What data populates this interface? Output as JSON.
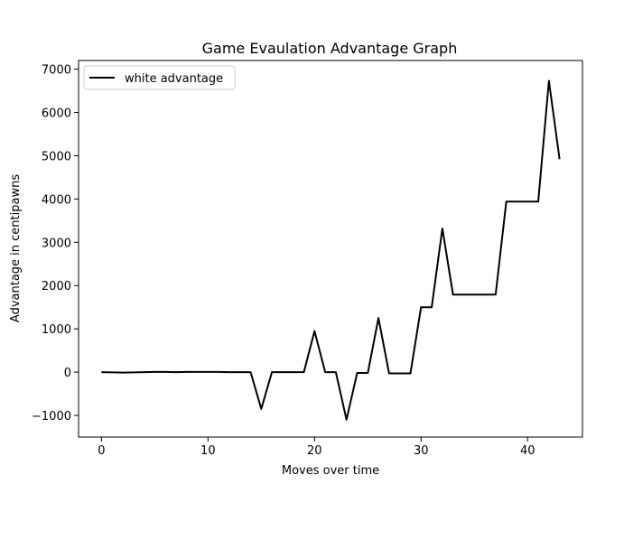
{
  "chart_data": {
    "type": "line",
    "title": "Game Evaulation Advantage Graph",
    "xlabel": "Moves over time",
    "ylabel": "Advantage in centipawns",
    "xlim": [
      -2.15,
      45.15
    ],
    "ylim": [
      -1500,
      7200
    ],
    "x_ticks": [
      0,
      10,
      20,
      30,
      40
    ],
    "y_ticks": [
      -1000,
      0,
      1000,
      2000,
      3000,
      4000,
      5000,
      6000,
      7000
    ],
    "grid": false,
    "legend_position": "top-left",
    "series": [
      {
        "name": "white advantage",
        "color": "#000000",
        "x": [
          0,
          1,
          2,
          3,
          4,
          5,
          6,
          7,
          8,
          9,
          10,
          11,
          12,
          13,
          14,
          15,
          16,
          17,
          18,
          19,
          20,
          21,
          22,
          23,
          24,
          25,
          26,
          27,
          28,
          29,
          30,
          31,
          32,
          33,
          34,
          35,
          36,
          37,
          38,
          39,
          40,
          41,
          42,
          43
        ],
        "values": [
          0,
          -5,
          -10,
          -5,
          0,
          5,
          5,
          0,
          5,
          5,
          5,
          5,
          0,
          0,
          0,
          -850,
          0,
          0,
          0,
          0,
          950,
          0,
          0,
          -1100,
          -20,
          -20,
          1250,
          -30,
          -30,
          -30,
          1500,
          1500,
          3320,
          1790,
          1790,
          1790,
          1790,
          1790,
          3940,
          3940,
          3940,
          3940,
          6730,
          4920
        ]
      }
    ]
  }
}
